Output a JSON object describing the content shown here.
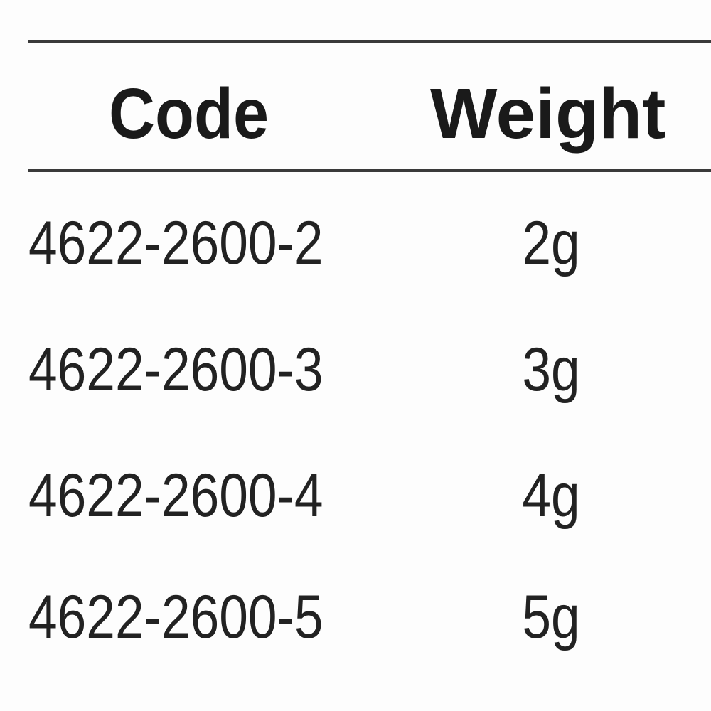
{
  "table": {
    "headers": {
      "code": "Code",
      "weight": "Weight"
    },
    "rows": [
      {
        "code": "4622-2600-2",
        "weight": "2g"
      },
      {
        "code": "4622-2600-3",
        "weight": "3g"
      },
      {
        "code": "4622-2600-4",
        "weight": "4g"
      },
      {
        "code": "4622-2600-5",
        "weight": "5g"
      }
    ]
  }
}
